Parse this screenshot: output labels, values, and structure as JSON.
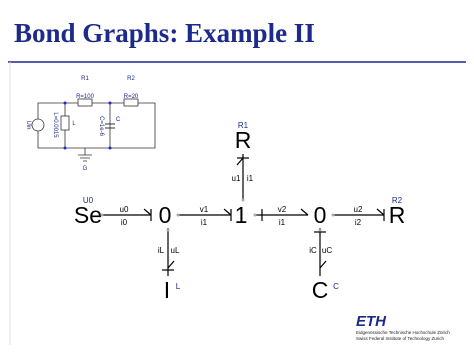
{
  "header": {
    "title": "Bond Graphs: Example II"
  },
  "circuit": {
    "r1": "R1",
    "r1_value": "R=100",
    "r2": "R2",
    "r2_value": "R=20",
    "l": "L",
    "l_value": "L=0.0015",
    "c": "C",
    "c_value": "C=1e-6",
    "source": "Uin",
    "ground": "G"
  },
  "bond_graph": {
    "nodes": [
      {
        "label": "Se",
        "name": "U0"
      },
      {
        "label": "0"
      },
      {
        "label": "1"
      },
      {
        "label": "0"
      },
      {
        "label": "R",
        "name": "R2"
      },
      {
        "label": "R",
        "name": "R1"
      },
      {
        "label": "I",
        "name": "L"
      },
      {
        "label": "C",
        "name": "C"
      }
    ],
    "bonds": [
      {
        "effort": "u0",
        "flow": "i0"
      },
      {
        "effort": "v1",
        "flow": "i1"
      },
      {
        "effort": "v2",
        "flow": "i1"
      },
      {
        "effort": "u2",
        "flow": "i2"
      },
      {
        "effort": "u1",
        "flow": "i1"
      },
      {
        "effort": "uL",
        "flow": "iL"
      },
      {
        "effort": "uC",
        "flow": "iC"
      }
    ]
  },
  "footer": {
    "logo": "ETH",
    "line1": "Eidgenössische Technische Hochschule Zürich",
    "line2": "Swiss Federal Institute of Technology Zurich"
  }
}
